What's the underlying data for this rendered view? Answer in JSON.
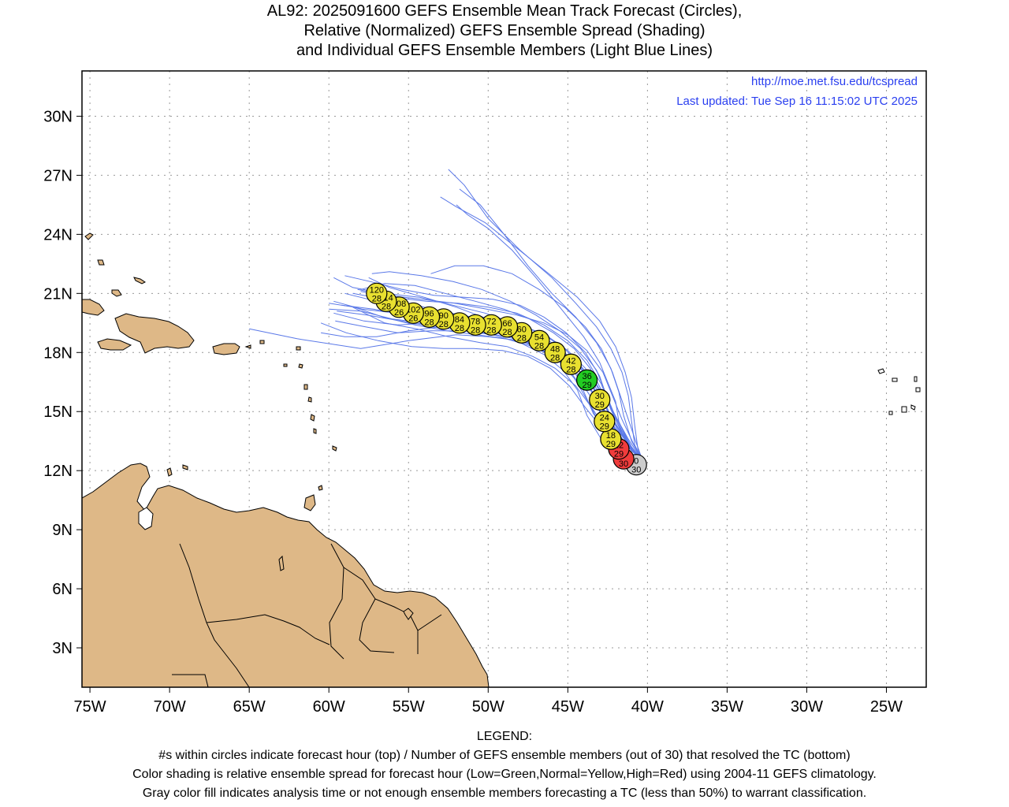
{
  "title_lines": [
    "AL92: 2025091600 GEFS Ensemble Mean Track Forecast (Circles),",
    "Relative (Normalized) GEFS Ensemble Spread (Shading)",
    "and Individual GEFS Ensemble Members (Light Blue Lines)"
  ],
  "credits": {
    "url": "http://moe.met.fsu.edu/tcspread",
    "updated": "Last updated: Tue Sep 16 11:15:02 UTC 2025"
  },
  "map": {
    "lon_range": [
      -75.5,
      -22.5
    ],
    "lat_range": [
      1,
      32.3
    ],
    "lon_ticks": [
      -75,
      -70,
      -65,
      -60,
      -55,
      -50,
      -45,
      -40,
      -35,
      -30,
      -25
    ],
    "lon_tick_labels": [
      "75W",
      "70W",
      "65W",
      "60W",
      "55W",
      "50W",
      "45W",
      "40W",
      "35W",
      "30W",
      "25W"
    ],
    "lat_ticks": [
      3,
      6,
      9,
      12,
      15,
      18,
      21,
      24,
      27,
      30
    ],
    "lat_tick_labels": [
      "3N",
      "6N",
      "9N",
      "12N",
      "15N",
      "18N",
      "21N",
      "24N",
      "27N",
      "30N"
    ],
    "grid": true,
    "colors": {
      "land": "#deb887",
      "member_track": "#5a78e8",
      "spread_low": "#22cc22",
      "spread_normal": "#e8e030",
      "spread_high": "#f03c3c",
      "analysis": "#cccccc",
      "credit_text": "#2a3ff0"
    }
  },
  "track": [
    {
      "hour": "0",
      "members": "30",
      "lon": -40.7,
      "lat": 12.3,
      "spread": "analysis"
    },
    {
      "hour": "6",
      "members": "30",
      "lon": -41.5,
      "lat": 12.6,
      "spread": "high"
    },
    {
      "hour": "12",
      "members": "29",
      "lon": -41.8,
      "lat": 13.1,
      "spread": "high"
    },
    {
      "hour": "18",
      "members": "29",
      "lon": -42.3,
      "lat": 13.6,
      "spread": "normal"
    },
    {
      "hour": "24",
      "members": "29",
      "lon": -42.7,
      "lat": 14.5,
      "spread": "normal"
    },
    {
      "hour": "30",
      "members": "29",
      "lon": -43.0,
      "lat": 15.6,
      "spread": "normal"
    },
    {
      "hour": "36",
      "members": "29",
      "lon": -43.8,
      "lat": 16.6,
      "spread": "low"
    },
    {
      "hour": "42",
      "members": "28",
      "lon": -44.8,
      "lat": 17.4,
      "spread": "normal"
    },
    {
      "hour": "48",
      "members": "28",
      "lon": -45.8,
      "lat": 18.0,
      "spread": "normal"
    },
    {
      "hour": "54",
      "members": "28",
      "lon": -46.8,
      "lat": 18.6,
      "spread": "normal"
    },
    {
      "hour": "60",
      "members": "28",
      "lon": -47.9,
      "lat": 19.0,
      "spread": "normal"
    },
    {
      "hour": "66",
      "members": "28",
      "lon": -48.8,
      "lat": 19.3,
      "spread": "normal"
    },
    {
      "hour": "72",
      "members": "28",
      "lon": -49.8,
      "lat": 19.4,
      "spread": "normal"
    },
    {
      "hour": "78",
      "members": "28",
      "lon": -50.8,
      "lat": 19.4,
      "spread": "normal"
    },
    {
      "hour": "84",
      "members": "28",
      "lon": -51.8,
      "lat": 19.5,
      "spread": "normal"
    },
    {
      "hour": "90",
      "members": "28",
      "lon": -52.8,
      "lat": 19.7,
      "spread": "normal"
    },
    {
      "hour": "96",
      "members": "28",
      "lon": -53.7,
      "lat": 19.8,
      "spread": "normal"
    },
    {
      "hour": "102",
      "members": "26",
      "lon": -54.7,
      "lat": 20.0,
      "spread": "normal"
    },
    {
      "hour": "108",
      "members": "26",
      "lon": -55.6,
      "lat": 20.3,
      "spread": "normal"
    },
    {
      "hour": "114",
      "members": "28",
      "lon": -56.4,
      "lat": 20.6,
      "spread": "normal"
    },
    {
      "hour": "120",
      "members": "28",
      "lon": -57.0,
      "lat": 21.0,
      "spread": "normal"
    }
  ],
  "members": [
    [
      [
        -40.3,
        12.5
      ],
      [
        -41,
        13
      ],
      [
        -42,
        14
      ],
      [
        -43,
        15
      ],
      [
        -43.5,
        16
      ],
      [
        -44.5,
        17
      ],
      [
        -45.5,
        17.6
      ],
      [
        -46.8,
        18.2
      ],
      [
        -48,
        18.6
      ],
      [
        -50,
        18.8
      ],
      [
        -52,
        18.9
      ],
      [
        -55,
        18.6
      ],
      [
        -58,
        18.2
      ],
      [
        -62,
        18.7
      ],
      [
        -65,
        19.2
      ]
    ],
    [
      [
        -40.3,
        12.5
      ],
      [
        -41.2,
        13.4
      ],
      [
        -41.8,
        14.5
      ],
      [
        -42,
        15.5
      ],
      [
        -42.5,
        16.5
      ],
      [
        -43,
        17.5
      ],
      [
        -44,
        18.8
      ],
      [
        -45.5,
        20.3
      ],
      [
        -47,
        21.8
      ],
      [
        -48.5,
        23.2
      ],
      [
        -50,
        24.3
      ],
      [
        -51.3,
        25
      ],
      [
        -52,
        25.5
      ]
    ],
    [
      [
        -40.3,
        12.5
      ],
      [
        -41,
        13.5
      ],
      [
        -41.5,
        14.8
      ],
      [
        -41.8,
        16
      ],
      [
        -42.3,
        17.2
      ],
      [
        -43.2,
        18.5
      ],
      [
        -44.5,
        19.8
      ],
      [
        -46,
        21
      ],
      [
        -47.5,
        22.4
      ],
      [
        -49,
        24
      ],
      [
        -50.5,
        25.5
      ],
      [
        -51.8,
        26.3
      ]
    ],
    [
      [
        -40.3,
        12.5
      ],
      [
        -40.8,
        13.3
      ],
      [
        -41,
        14.5
      ],
      [
        -41.2,
        15.8
      ],
      [
        -41.6,
        17
      ],
      [
        -42.3,
        18.2
      ],
      [
        -43.2,
        19.3
      ],
      [
        -44.5,
        20.5
      ],
      [
        -46,
        21.8
      ],
      [
        -48,
        23.2
      ],
      [
        -50,
        24.8
      ],
      [
        -51.5,
        26.5
      ],
      [
        -52.5,
        27.3
      ]
    ],
    [
      [
        -40.3,
        12.5
      ],
      [
        -41.5,
        13
      ],
      [
        -42.5,
        14
      ],
      [
        -43.5,
        15.2
      ],
      [
        -44.5,
        16.3
      ],
      [
        -45.8,
        17.2
      ],
      [
        -47.2,
        17.8
      ],
      [
        -48.8,
        18.3
      ],
      [
        -50.5,
        18.5
      ],
      [
        -52.5,
        18.8
      ],
      [
        -54.5,
        19.2
      ],
      [
        -56.5,
        19.5
      ],
      [
        -58.5,
        20.3
      ]
    ],
    [
      [
        -40.3,
        12.5
      ],
      [
        -41.2,
        13.2
      ],
      [
        -42.2,
        14.2
      ],
      [
        -43,
        15.4
      ],
      [
        -43.6,
        16.6
      ],
      [
        -44.6,
        17.6
      ],
      [
        -46,
        18.5
      ],
      [
        -47.5,
        19.1
      ],
      [
        -49.2,
        19.5
      ],
      [
        -51,
        19.8
      ],
      [
        -53,
        20.1
      ],
      [
        -55,
        20.3
      ],
      [
        -57,
        20.6
      ],
      [
        -59,
        21
      ]
    ],
    [
      [
        -40.3,
        12.5
      ],
      [
        -41.3,
        13.3
      ],
      [
        -42.3,
        14.4
      ],
      [
        -43.2,
        15.6
      ],
      [
        -44,
        16.8
      ],
      [
        -45.2,
        17.8
      ],
      [
        -46.6,
        18.6
      ],
      [
        -48.2,
        19.2
      ],
      [
        -50,
        19.7
      ],
      [
        -52,
        20.3
      ],
      [
        -54,
        20.8
      ],
      [
        -56.2,
        21.3
      ],
      [
        -57.5,
        21.8
      ]
    ],
    [
      [
        -40.3,
        12.5
      ],
      [
        -41.4,
        13.4
      ],
      [
        -42.4,
        14.6
      ],
      [
        -43.3,
        15.8
      ],
      [
        -44.2,
        17
      ],
      [
        -45.4,
        18
      ],
      [
        -46.8,
        18.8
      ],
      [
        -48.4,
        19.5
      ],
      [
        -50.2,
        20
      ],
      [
        -52.2,
        20.4
      ],
      [
        -54.3,
        20.8
      ],
      [
        -56.5,
        21
      ],
      [
        -58.5,
        21.3
      ],
      [
        -59.7,
        21.8
      ]
    ],
    [
      [
        -40.3,
        12.5
      ],
      [
        -41,
        13.1
      ],
      [
        -41.9,
        14.1
      ],
      [
        -42.6,
        15.3
      ],
      [
        -43.3,
        16.5
      ],
      [
        -44.4,
        17.5
      ],
      [
        -45.8,
        18.3
      ],
      [
        -47.4,
        18.9
      ],
      [
        -49.1,
        19.2
      ],
      [
        -51,
        19.3
      ],
      [
        -53,
        19.3
      ],
      [
        -55,
        19.1
      ],
      [
        -57,
        18.8
      ],
      [
        -59,
        18.8
      ],
      [
        -60.5,
        19
      ]
    ],
    [
      [
        -40.3,
        12.5
      ],
      [
        -41.3,
        13
      ],
      [
        -42.4,
        13.8
      ],
      [
        -43.4,
        14.9
      ],
      [
        -44.1,
        16.2
      ],
      [
        -45,
        17.2
      ],
      [
        -46.3,
        18
      ],
      [
        -47.8,
        18.6
      ],
      [
        -49.5,
        18.9
      ],
      [
        -51.4,
        19.1
      ],
      [
        -53.4,
        19.3
      ],
      [
        -55.5,
        19.6
      ],
      [
        -57.6,
        19.9
      ],
      [
        -59.5,
        20.1
      ]
    ],
    [
      [
        -40.3,
        12.5
      ],
      [
        -41.1,
        13.3
      ],
      [
        -41.9,
        14.4
      ],
      [
        -42.5,
        15.6
      ],
      [
        -43,
        16.8
      ],
      [
        -43.9,
        18
      ],
      [
        -45.1,
        19
      ],
      [
        -46.5,
        19.8
      ],
      [
        -48,
        20.4
      ],
      [
        -49.7,
        20.7
      ],
      [
        -51.5,
        20.8
      ],
      [
        -53.4,
        20.9
      ],
      [
        -55.4,
        21.2
      ],
      [
        -57.4,
        21.6
      ],
      [
        -59,
        21.9
      ]
    ],
    [
      [
        -40.3,
        12.5
      ],
      [
        -40.9,
        13.4
      ],
      [
        -41.6,
        14.6
      ],
      [
        -42.2,
        15.8
      ],
      [
        -42.8,
        17
      ],
      [
        -43.8,
        18.1
      ],
      [
        -45,
        18.9
      ],
      [
        -46.5,
        19.5
      ],
      [
        -48.2,
        19.9
      ],
      [
        -50.1,
        20.2
      ],
      [
        -52.1,
        20.5
      ],
      [
        -54.2,
        20.7
      ],
      [
        -56.3,
        20.9
      ],
      [
        -58.2,
        21.2
      ]
    ],
    [
      [
        -40.3,
        12.5
      ],
      [
        -41.5,
        13.5
      ],
      [
        -42.7,
        14.7
      ],
      [
        -43.6,
        15.8
      ],
      [
        -44.5,
        16.9
      ],
      [
        -45.7,
        17.7
      ],
      [
        -47.2,
        18.3
      ],
      [
        -48.9,
        18.7
      ],
      [
        -50.7,
        18.9
      ],
      [
        -52.6,
        19.1
      ],
      [
        -54.6,
        19.4
      ],
      [
        -56.6,
        19.8
      ],
      [
        -58.4,
        20.3
      ],
      [
        -60,
        20.5
      ]
    ],
    [
      [
        -40.3,
        12.5
      ],
      [
        -41.6,
        13.2
      ],
      [
        -42.8,
        14.1
      ],
      [
        -43.9,
        15.2
      ],
      [
        -44.9,
        16.3
      ],
      [
        -46.1,
        17.2
      ],
      [
        -47.5,
        17.8
      ],
      [
        -49.1,
        18.1
      ],
      [
        -50.9,
        18.2
      ],
      [
        -52.8,
        18.2
      ],
      [
        -54.8,
        18.3
      ],
      [
        -56.9,
        18.6
      ],
      [
        -58.9,
        19
      ],
      [
        -60.5,
        19.5
      ]
    ],
    [
      [
        -40.3,
        12.5
      ],
      [
        -41.2,
        13.6
      ],
      [
        -42.1,
        14.9
      ],
      [
        -42.9,
        16.1
      ],
      [
        -43.6,
        17.2
      ],
      [
        -44.6,
        18.2
      ],
      [
        -45.9,
        19
      ],
      [
        -47.4,
        19.7
      ],
      [
        -49,
        20.2
      ],
      [
        -50.8,
        20.6
      ],
      [
        -52.7,
        21
      ],
      [
        -54.6,
        21.4
      ],
      [
        -56.5,
        21.5
      ],
      [
        -58,
        21.2
      ]
    ],
    [
      [
        -40.3,
        12.5
      ],
      [
        -40.6,
        13.1
      ],
      [
        -40.8,
        14.3
      ],
      [
        -41,
        15.7
      ],
      [
        -41.4,
        17
      ],
      [
        -42,
        18.3
      ],
      [
        -43,
        19.6
      ],
      [
        -44.4,
        20.8
      ],
      [
        -46.2,
        22
      ],
      [
        -48.2,
        23.3
      ],
      [
        -50.2,
        24.6
      ],
      [
        -52,
        25.4
      ],
      [
        -53,
        25.9
      ]
    ],
    [
      [
        -40.3,
        12.5
      ],
      [
        -41,
        13.2
      ],
      [
        -41.7,
        14.3
      ],
      [
        -42.4,
        15.4
      ],
      [
        -43.3,
        16.5
      ],
      [
        -44.5,
        17.4
      ],
      [
        -46,
        18.1
      ],
      [
        -47.7,
        18.6
      ],
      [
        -49.5,
        19
      ],
      [
        -51.4,
        19.3
      ],
      [
        -53.3,
        19.6
      ],
      [
        -55.2,
        19.9
      ],
      [
        -57.2,
        20.2
      ],
      [
        -59.2,
        20.4
      ]
    ],
    [
      [
        -40.3,
        12.5
      ],
      [
        -41.4,
        13.6
      ],
      [
        -42.3,
        14.8
      ],
      [
        -43.1,
        16
      ],
      [
        -43.9,
        17.2
      ],
      [
        -45,
        18.1
      ],
      [
        -46.4,
        18.9
      ],
      [
        -48,
        19.4
      ],
      [
        -49.8,
        19.7
      ],
      [
        -51.7,
        19.8
      ],
      [
        -53.7,
        19.9
      ],
      [
        -55.8,
        20
      ],
      [
        -57.9,
        20.2
      ],
      [
        -59.7,
        20.6
      ]
    ],
    [
      [
        -40.3,
        12.5
      ],
      [
        -41.6,
        12.9
      ],
      [
        -42.9,
        13.6
      ],
      [
        -43.8,
        14.8
      ],
      [
        -44.4,
        16.1
      ],
      [
        -45.3,
        17.1
      ],
      [
        -46.5,
        17.9
      ],
      [
        -48,
        18.5
      ],
      [
        -49.7,
        18.9
      ],
      [
        -51.6,
        19.1
      ],
      [
        -53.6,
        19.1
      ],
      [
        -55.7,
        19
      ],
      [
        -57.7,
        19.3
      ],
      [
        -59.6,
        19.6
      ]
    ],
    [
      [
        -40.3,
        12.5
      ],
      [
        -40.9,
        13
      ],
      [
        -41.6,
        13.9
      ],
      [
        -42.3,
        15.1
      ],
      [
        -42.9,
        16.4
      ],
      [
        -43.8,
        17.6
      ],
      [
        -45,
        18.6
      ],
      [
        -46.5,
        19.4
      ],
      [
        -48.2,
        20
      ],
      [
        -50,
        20.3
      ],
      [
        -51.9,
        20.5
      ],
      [
        -53.9,
        20.6
      ],
      [
        -56,
        20.8
      ],
      [
        -58,
        21.1
      ]
    ],
    [
      [
        -40.3,
        12.5
      ],
      [
        -41.8,
        13.3
      ],
      [
        -43,
        14.4
      ],
      [
        -43.8,
        15.6
      ],
      [
        -44.6,
        16.7
      ],
      [
        -45.6,
        17.6
      ],
      [
        -46.9,
        18.3
      ],
      [
        -48.4,
        18.8
      ],
      [
        -50.1,
        19.1
      ],
      [
        -52,
        19.3
      ],
      [
        -54,
        19.5
      ],
      [
        -56,
        19.7
      ],
      [
        -58,
        20.1
      ],
      [
        -60,
        20.2
      ]
    ],
    [
      [
        -40.3,
        12.5
      ],
      [
        -41.3,
        13.5
      ],
      [
        -42,
        14.7
      ],
      [
        -42.6,
        15.9
      ],
      [
        -43.2,
        17.1
      ],
      [
        -44.2,
        18.2
      ],
      [
        -45.5,
        19.1
      ],
      [
        -47,
        19.9
      ],
      [
        -48.6,
        20.6
      ],
      [
        -50.4,
        21.2
      ],
      [
        -52.2,
        21.6
      ],
      [
        -54.2,
        21.9
      ],
      [
        -56.2,
        22.1
      ],
      [
        -57.3,
        22
      ]
    ],
    [
      [
        -40.3,
        12.5
      ],
      [
        -41.1,
        13.2
      ],
      [
        -41.9,
        14.2
      ],
      [
        -42.7,
        15.3
      ],
      [
        -43.5,
        16.4
      ],
      [
        -44.6,
        17.3
      ],
      [
        -45.9,
        18.1
      ],
      [
        -47.4,
        18.7
      ],
      [
        -49,
        19.2
      ],
      [
        -50.8,
        19.6
      ],
      [
        -52.6,
        20
      ],
      [
        -54.5,
        20.4
      ],
      [
        -56.5,
        20.7
      ],
      [
        -58.5,
        21
      ]
    ],
    [
      [
        -40.3,
        12.5
      ],
      [
        -41.6,
        13.6
      ],
      [
        -42.6,
        14.9
      ],
      [
        -43.4,
        16.2
      ],
      [
        -44.2,
        17.3
      ],
      [
        -45.2,
        18.2
      ],
      [
        -46.5,
        18.9
      ],
      [
        -48,
        19.4
      ],
      [
        -49.7,
        19.6
      ],
      [
        -51.6,
        19.6
      ],
      [
        -53.6,
        19.5
      ],
      [
        -55.7,
        19.4
      ],
      [
        -57.8,
        19.6
      ],
      [
        -59.7,
        20
      ]
    ],
    [
      [
        -40.3,
        12.5
      ],
      [
        -40.7,
        13.4
      ],
      [
        -41.2,
        14.6
      ],
      [
        -41.7,
        15.8
      ],
      [
        -42.2,
        17
      ],
      [
        -42.9,
        18.2
      ],
      [
        -43.9,
        19.3
      ],
      [
        -45.2,
        20.3
      ],
      [
        -46.8,
        21.2
      ],
      [
        -48.5,
        22
      ],
      [
        -50.3,
        22.4
      ],
      [
        -52.1,
        22.4
      ],
      [
        -53.6,
        22
      ]
    ]
  ],
  "legend": {
    "heading": "LEGEND:",
    "lines": [
      "#s within circles indicate forecast hour (top) / Number of GEFS ensemble members (out of 30) that resolved the TC (bottom)",
      "Color shading is relative ensemble spread for forecast hour (Low=Green,Normal=Yellow,High=Red) using 2004-11 GEFS climatology.",
      "Gray color fill indicates analysis time or not enough ensemble members forecasting a TC (less than 50%) to warrant classification."
    ]
  }
}
